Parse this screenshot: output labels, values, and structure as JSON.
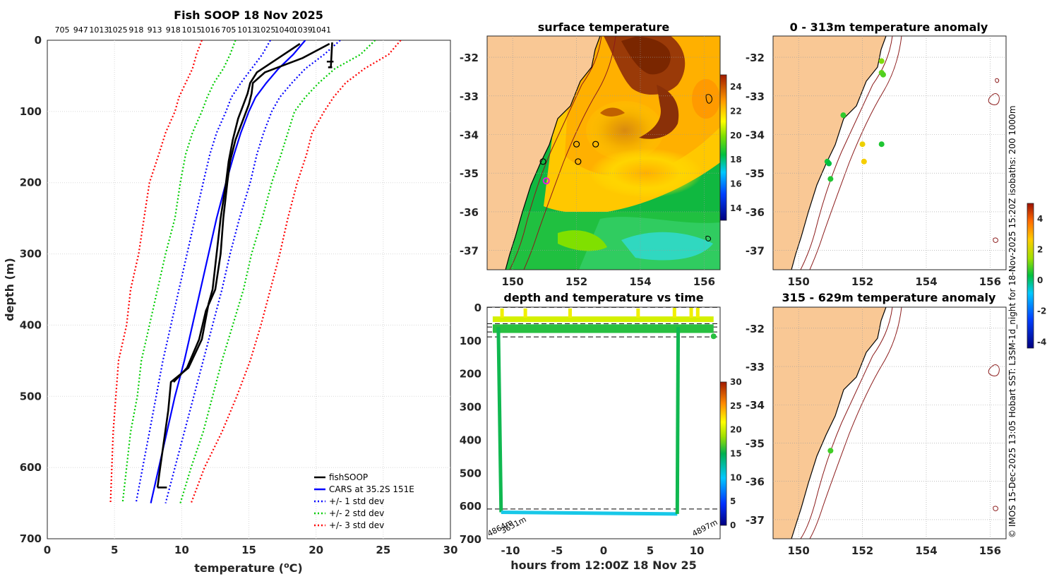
{
  "chart_data": [
    {
      "id": "profile",
      "type": "line",
      "title": "Fish SOOP 18 Nov 2025",
      "xlabel": "temperature",
      "xlabel_unit": "(oC)",
      "ylabel": "depth (m)",
      "xlim": [
        0,
        30
      ],
      "ylim": [
        700,
        0
      ],
      "xticks": [
        0,
        5,
        10,
        15,
        20,
        25,
        30
      ],
      "yticks": [
        0,
        100,
        200,
        300,
        400,
        500,
        600,
        700
      ],
      "top_labels": [
        "705",
        "947",
        "1013",
        "1025",
        "918",
        "913",
        "918",
        "1015",
        "1016",
        "705",
        "1013",
        "1025",
        "1040",
        "1039",
        "1041"
      ],
      "legend": [
        "fishSOOP",
        "CARS at 35.2S 151E",
        "+/- 1 std dev",
        "+/- 2 std dev",
        "+/- 3 std dev"
      ],
      "series": [
        {
          "name": "CARS at 35.2S 151E",
          "color": "#0000ff",
          "depth": [
            0,
            20,
            40,
            60,
            80,
            100,
            130,
            160,
            200,
            250,
            300,
            350,
            400,
            450,
            500,
            550,
            600,
            650
          ],
          "values": [
            19.2,
            18.3,
            17.2,
            16.3,
            15.5,
            15.0,
            14.4,
            13.9,
            13.3,
            12.6,
            12.0,
            11.4,
            10.8,
            10.2,
            9.5,
            8.9,
            8.3,
            7.7
          ]
        },
        {
          "name": "+/- 1 std dev",
          "color": "#0000ff",
          "depth": [
            0,
            20,
            40,
            60,
            80,
            100,
            130,
            160,
            200,
            250,
            300,
            350,
            400,
            450,
            500,
            550,
            600,
            650
          ],
          "values_low": [
            16.6,
            16.0,
            15.2,
            14.4,
            13.7,
            13.3,
            12.6,
            12.1,
            11.6,
            11.0,
            10.4,
            9.8,
            9.2,
            8.6,
            8.1,
            7.6,
            7.1,
            6.6
          ],
          "values_high": [
            21.8,
            20.6,
            19.2,
            18.2,
            17.3,
            16.7,
            16.1,
            15.6,
            15.1,
            14.3,
            13.6,
            13.0,
            12.3,
            11.6,
            10.9,
            10.2,
            9.5,
            8.8
          ]
        },
        {
          "name": "+/- 2 std dev",
          "color": "#00cc00",
          "depth": [
            0,
            20,
            40,
            60,
            80,
            100,
            130,
            160,
            200,
            250,
            300,
            350,
            400,
            450,
            500,
            550,
            600,
            650
          ],
          "values_low": [
            14.0,
            13.6,
            13.1,
            12.4,
            11.9,
            11.5,
            10.8,
            10.3,
            9.9,
            9.5,
            8.8,
            8.2,
            7.6,
            7.0,
            6.7,
            6.2,
            5.9,
            5.6
          ],
          "values_high": [
            24.4,
            23.3,
            21.4,
            20.2,
            19.2,
            18.4,
            17.9,
            17.4,
            16.7,
            16.0,
            15.2,
            14.6,
            13.8,
            13.0,
            12.3,
            11.6,
            10.7,
            9.9
          ]
        },
        {
          "name": "+/- 3 std dev",
          "color": "#ff0000",
          "depth": [
            0,
            20,
            40,
            60,
            80,
            100,
            130,
            160,
            200,
            250,
            300,
            350,
            400,
            450,
            500,
            550,
            600,
            650
          ],
          "values_low": [
            11.5,
            11.1,
            10.8,
            10.3,
            9.8,
            9.5,
            8.8,
            8.3,
            7.6,
            7.2,
            6.8,
            6.2,
            5.9,
            5.3,
            5.1,
            4.9,
            4.8,
            4.7
          ],
          "values_high": [
            26.3,
            25.4,
            23.6,
            22.2,
            21.3,
            20.6,
            19.7,
            19.3,
            18.6,
            17.9,
            17.3,
            16.6,
            15.9,
            15.1,
            14.1,
            13.0,
            11.7,
            10.7
          ]
        },
        {
          "name": "fishSOOP",
          "color": "#000000",
          "depth": [
            5,
            25,
            45,
            60,
            75,
            90,
            110,
            140,
            170,
            200,
            250,
            300,
            350,
            370,
            420,
            460,
            480,
            520,
            560,
            600,
            628
          ],
          "values": [
            18.8,
            17.2,
            15.6,
            15.1,
            14.9,
            14.6,
            14.2,
            13.8,
            13.5,
            13.3,
            12.9,
            12.6,
            12.3,
            12.0,
            11.5,
            10.5,
            9.2,
            9.0,
            8.7,
            8.4,
            8.2
          ]
        },
        {
          "name": "fishSOOP",
          "color": "#000000",
          "depth": [
            5,
            25,
            45,
            60,
            75,
            90,
            110,
            140,
            170,
            200,
            250,
            300,
            350,
            380,
            420,
            460,
            480
          ],
          "values": [
            21.0,
            19.0,
            16.2,
            15.3,
            15.2,
            15.0,
            14.6,
            14.0,
            13.6,
            13.4,
            13.1,
            12.9,
            12.5,
            11.8,
            11.3,
            10.4,
            9.4
          ]
        }
      ]
    },
    {
      "id": "sst-map",
      "type": "heatmap",
      "title": "surface temperature",
      "xticks": [
        150,
        152,
        154,
        156
      ],
      "yticks": [
        -32,
        -33,
        -34,
        -35,
        -36,
        -37
      ],
      "colorbar_ticks": [
        14,
        16,
        18,
        20,
        22,
        24
      ],
      "stations": [
        [
          152.0,
          -34.25
        ],
        [
          152.6,
          -34.25
        ],
        [
          152.05,
          -34.7
        ],
        [
          150.95,
          -34.7
        ],
        [
          151.05,
          -35.2
        ]
      ]
    },
    {
      "id": "depth-time",
      "type": "scatter",
      "title": "depth and temperature vs time",
      "xlabel": "hours from 12:00Z 18 Nov 25",
      "xlim": [
        -12.5,
        12.5
      ],
      "ylim": [
        700,
        0
      ],
      "xticks": [
        -10,
        -5,
        0,
        5,
        10
      ],
      "yticks": [
        0,
        100,
        200,
        300,
        400,
        500,
        600,
        700
      ],
      "colorbar_ticks": [
        0,
        5,
        10,
        15,
        20,
        25,
        30
      ],
      "annotations": [
        "4864m",
        "3651m",
        "4897m"
      ],
      "dashed_depths": [
        0,
        50,
        60,
        75,
        90,
        610
      ],
      "trace": [
        [
          -11.3,
          60
        ],
        [
          -11.0,
          620
        ],
        [
          7.9,
          625
        ],
        [
          8.0,
          60
        ]
      ]
    },
    {
      "id": "anom-upper",
      "type": "scatter",
      "title": "0 - 313m temperature anomaly",
      "xticks": [
        150,
        152,
        154,
        156
      ],
      "yticks": [
        -32,
        -33,
        -34,
        -35,
        -36,
        -37
      ],
      "points": [
        [
          152.6,
          -32.1,
          0.8
        ],
        [
          152.6,
          -32.4,
          0.6
        ],
        [
          152.65,
          -32.45,
          0.5
        ],
        [
          151.4,
          -33.5,
          0.3
        ],
        [
          152.0,
          -34.25,
          1.8
        ],
        [
          152.6,
          -34.25,
          0.2
        ],
        [
          152.05,
          -34.7,
          1.9
        ],
        [
          150.9,
          -34.7,
          0.1
        ],
        [
          150.95,
          -34.75,
          0.0
        ],
        [
          151.0,
          -35.15,
          0.2
        ]
      ]
    },
    {
      "id": "anom-lower",
      "type": "scatter",
      "title": "315 - 629m temperature anomaly",
      "xticks": [
        150,
        152,
        154,
        156
      ],
      "yticks": [
        -32,
        -33,
        -34,
        -35,
        -36,
        -37
      ],
      "points": [
        [
          151.0,
          -35.2,
          0.4
        ]
      ]
    },
    {
      "id": "anom-colorbar",
      "type": "heatmap",
      "colorbar_ticks": [
        4,
        2,
        0,
        -2,
        -4
      ]
    }
  ],
  "credit": "© IMOS 15-Dec-2025 13:05 Hobart SST: L3SM-1d_night for 18-Nov-2025 15:20Z isobaths: 200  1000m"
}
